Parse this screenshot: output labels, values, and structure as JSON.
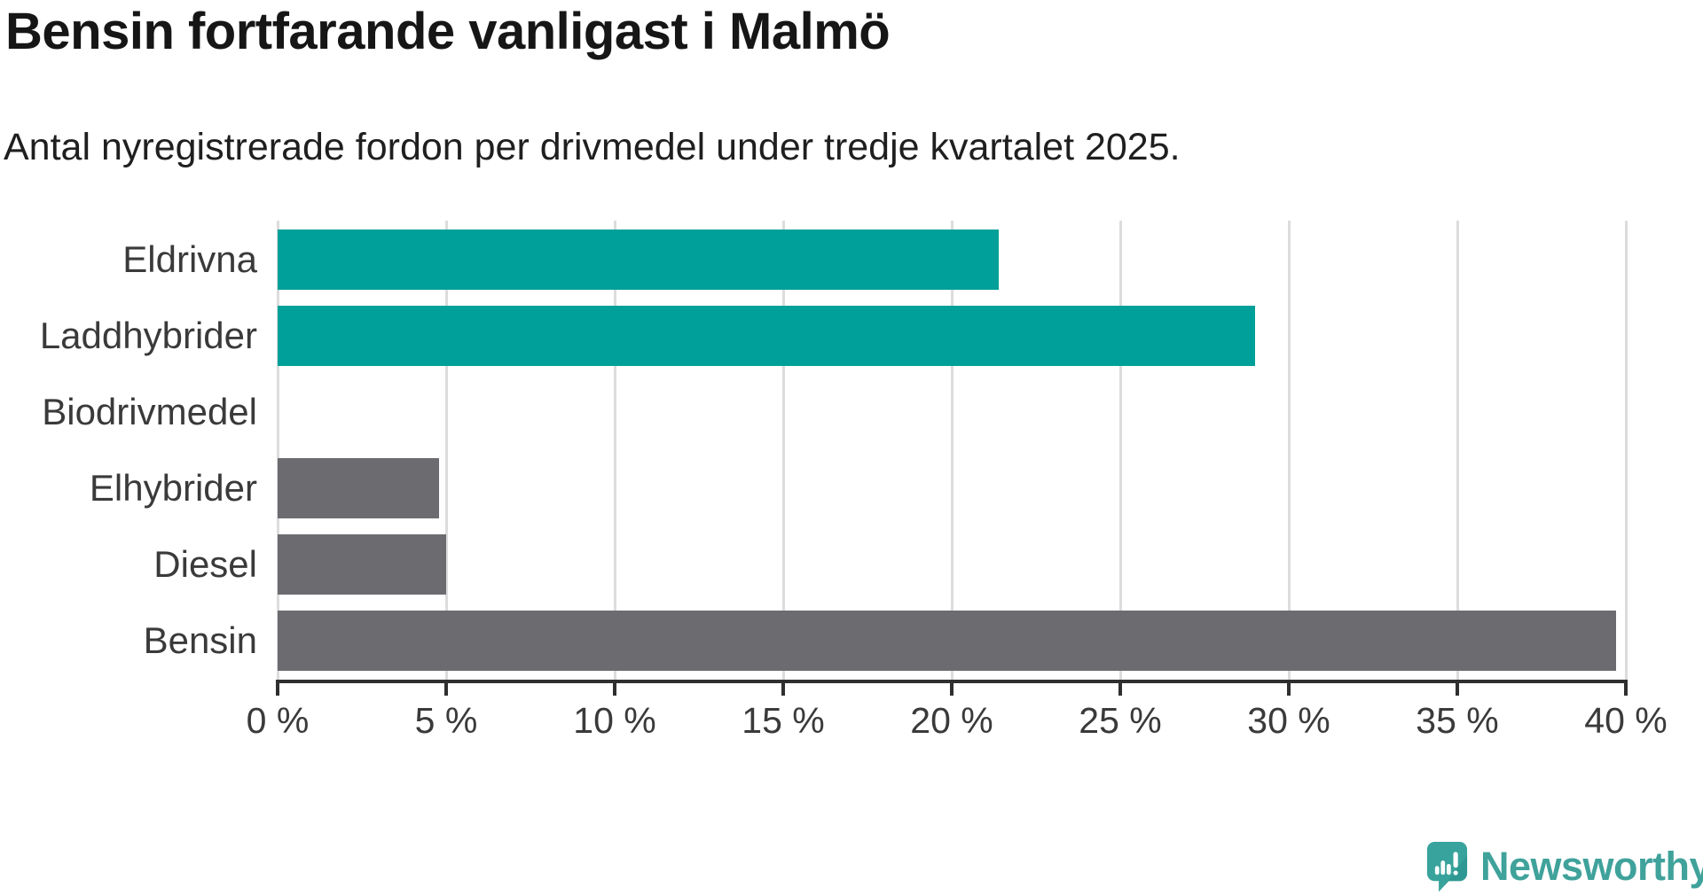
{
  "header": {
    "title": "Bensin fortfarande vanligast i Malmö",
    "subtitle": "Antal nyregistrerade fordon per drivmedel under tredje kvartalet 2025."
  },
  "chart_data": {
    "type": "bar",
    "orientation": "horizontal",
    "title": "Bensin fortfarande vanligast i Malmö",
    "subtitle": "Antal nyregistrerade fordon per drivmedel under tredje kvartalet 2025.",
    "categories": [
      "Eldrivna",
      "Laddhybrider",
      "Biodrivmedel",
      "Elhybrider",
      "Diesel",
      "Bensin"
    ],
    "values": [
      21.4,
      29.0,
      0,
      4.8,
      5.0,
      39.7
    ],
    "bar_colors": [
      "#00a09a",
      "#00a09a",
      "#6c6c70",
      "#6c6c70",
      "#6c6c70",
      "#6c6c70"
    ],
    "xlabel": "",
    "ylabel": "",
    "xlim": [
      0,
      40
    ],
    "x_ticks": [
      0,
      5,
      10,
      15,
      20,
      25,
      30,
      35,
      40
    ],
    "x_tick_suffix": " %",
    "grid": true,
    "legend": false,
    "colors": {
      "highlight": "#00a09a",
      "default": "#6c6c70",
      "gridline": "#dcdcdc",
      "axis": "#2f2f2f",
      "label": "#3a3a3a"
    }
  },
  "footer": {
    "brand": "Newsworthy",
    "brand_color": "#3fa29b",
    "logo_icon": "newsworthy-speech-bubble-barchart-icon",
    "logo_bubble_color": "#38a39c",
    "logo_bubble_shade_color": "#2f9791"
  }
}
